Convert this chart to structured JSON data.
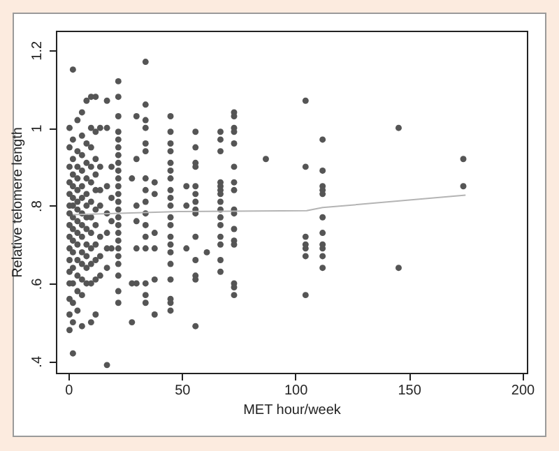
{
  "chart_data": {
    "type": "scatter",
    "xlabel": "MET hour/week",
    "ylabel": "Relative telomere length",
    "xlim": [
      -5.5,
      202
    ],
    "ylim": [
      0.37,
      1.25
    ],
    "xticks": [
      0,
      50,
      100,
      150,
      200
    ],
    "yticks": [
      {
        "value": 0.4,
        "label": ".4"
      },
      {
        "value": 0.6,
        "label": ".6"
      },
      {
        "value": 0.8,
        "label": ".8"
      },
      {
        "value": 1,
        "label": "1"
      },
      {
        "value": 1.2,
        "label": "1.2"
      }
    ],
    "grid": false,
    "series": [
      {
        "marker": "circle",
        "color": "#555555",
        "x": [
          0.5,
          0.5,
          0.5,
          0.5,
          0.5,
          0.5,
          0.5,
          0.5,
          0.5,
          0.5,
          0.5,
          0.5,
          0.5,
          0.5,
          0.5,
          0.5,
          2,
          2,
          2,
          2,
          2,
          2,
          2,
          2,
          2,
          2,
          2,
          2,
          2,
          2,
          2,
          2,
          4,
          4,
          4,
          4,
          4,
          4,
          4,
          4,
          4,
          4,
          4,
          4,
          4,
          4,
          6,
          6,
          6,
          6,
          6,
          6,
          6,
          6,
          6,
          6,
          6,
          6,
          6,
          6,
          8,
          8,
          8,
          8,
          8,
          8,
          8,
          8,
          8,
          8,
          8,
          8,
          10,
          10,
          10,
          10,
          10,
          10,
          10,
          10,
          10,
          10,
          10,
          10,
          12,
          12,
          12,
          12,
          12,
          12,
          12,
          12,
          12,
          12,
          12,
          14,
          14,
          14,
          14,
          14,
          14,
          14,
          17,
          17,
          17,
          17,
          17,
          17,
          17,
          17,
          19,
          19,
          19,
          19,
          22,
          22,
          22,
          22,
          22,
          22,
          22,
          22,
          22,
          22,
          22,
          22,
          22,
          22,
          22,
          22,
          22,
          22,
          22,
          22,
          22,
          22,
          22,
          22,
          28,
          28,
          28,
          30,
          30,
          30,
          30,
          30,
          30,
          34,
          34,
          34,
          34,
          34,
          34,
          34,
          34,
          34,
          34,
          34,
          34,
          34,
          34,
          34,
          34,
          38,
          38,
          38,
          38,
          38,
          38,
          45,
          45,
          45,
          45,
          45,
          45,
          45,
          45,
          45,
          45,
          45,
          45,
          45,
          45,
          45,
          45,
          45,
          45,
          45,
          45,
          52,
          52,
          52,
          56,
          56,
          56,
          56,
          56,
          56,
          56,
          56,
          56,
          56,
          56,
          56,
          56,
          56,
          61,
          67,
          67,
          67,
          67,
          67,
          67,
          67,
          67,
          67,
          67,
          67,
          67,
          67,
          67,
          67,
          73,
          73,
          73,
          73,
          73,
          73,
          73,
          73,
          73,
          73,
          73,
          73,
          73,
          73,
          73,
          73,
          87,
          104.5,
          104.5,
          104.5,
          104.5,
          104.5,
          104.5,
          104.5,
          112,
          112,
          112,
          112,
          112,
          112,
          112,
          112,
          112,
          112,
          112,
          145.5,
          145.5,
          174,
          174
        ],
        "values": [
          0.48,
          0.52,
          0.56,
          0.6,
          0.63,
          0.66,
          0.69,
          0.72,
          0.75,
          0.78,
          0.8,
          0.83,
          0.86,
          0.9,
          0.95,
          1.0,
          0.42,
          0.5,
          0.55,
          0.6,
          0.64,
          0.68,
          0.71,
          0.74,
          0.77,
          0.8,
          0.82,
          0.85,
          0.88,
          0.92,
          0.97,
          1.15,
          0.53,
          0.58,
          0.62,
          0.66,
          0.7,
          0.73,
          0.76,
          0.79,
          0.81,
          0.84,
          0.87,
          0.9,
          0.94,
          1.02,
          0.49,
          0.57,
          0.61,
          0.65,
          0.68,
          0.72,
          0.75,
          0.78,
          0.82,
          0.85,
          0.89,
          0.93,
          0.98,
          1.04,
          0.6,
          0.64,
          0.67,
          0.7,
          0.74,
          0.77,
          0.8,
          0.83,
          0.87,
          0.91,
          0.96,
          1.07,
          0.5,
          0.6,
          0.65,
          0.69,
          0.73,
          0.77,
          0.81,
          0.86,
          0.9,
          0.95,
          1.0,
          1.08,
          0.52,
          0.61,
          0.66,
          0.7,
          0.75,
          0.79,
          0.84,
          0.88,
          0.92,
          0.99,
          1.08,
          0.62,
          0.67,
          0.72,
          0.8,
          0.84,
          0.9,
          1.0,
          0.39,
          0.64,
          0.69,
          0.73,
          0.78,
          0.85,
          1.0,
          1.07,
          0.69,
          0.76,
          0.82,
          0.9,
          0.55,
          0.58,
          0.62,
          0.65,
          0.67,
          0.69,
          0.71,
          0.73,
          0.75,
          0.77,
          0.79,
          0.81,
          0.83,
          0.85,
          0.87,
          0.89,
          0.91,
          0.93,
          0.95,
          0.97,
          0.99,
          1.03,
          1.08,
          1.12,
          0.5,
          0.6,
          0.87,
          0.6,
          0.69,
          0.76,
          0.8,
          0.92,
          1.03,
          0.55,
          0.57,
          0.6,
          0.69,
          0.72,
          0.75,
          0.78,
          0.81,
          0.84,
          0.87,
          0.94,
          0.96,
          1.0,
          1.02,
          1.06,
          1.17,
          0.52,
          0.61,
          0.69,
          0.73,
          0.83,
          0.86,
          1.03,
          0.99,
          0.96,
          0.94,
          0.91,
          0.89,
          0.87,
          0.84,
          0.82,
          0.8,
          0.77,
          0.75,
          0.72,
          0.7,
          0.68,
          0.65,
          0.61,
          0.56,
          0.55,
          0.53,
          0.69,
          0.8,
          0.85,
          0.99,
          0.95,
          0.91,
          0.9,
          0.85,
          0.83,
          0.81,
          0.79,
          0.78,
          0.72,
          0.66,
          0.62,
          0.61,
          0.49,
          0.68,
          0.99,
          0.97,
          0.94,
          0.86,
          0.85,
          0.84,
          0.83,
          0.81,
          0.79,
          0.77,
          0.75,
          0.72,
          0.7,
          0.66,
          0.63,
          1.04,
          1.03,
          1.0,
          0.99,
          0.96,
          0.9,
          0.86,
          0.84,
          0.79,
          0.78,
          0.74,
          0.71,
          0.7,
          0.6,
          0.59,
          0.57,
          0.92,
          1.07,
          0.9,
          0.72,
          0.7,
          0.69,
          0.67,
          0.57,
          0.97,
          0.89,
          0.85,
          0.84,
          0.83,
          0.77,
          0.73,
          0.7,
          0.69,
          0.67,
          0.64,
          1.0,
          0.64,
          0.92,
          0.85
        ]
      },
      {
        "type": "line",
        "color": "#b4b4b4",
        "x": [
          2,
          50,
          105,
          112,
          175
        ],
        "values": [
          0.777,
          0.785,
          0.787,
          0.795,
          0.827
        ]
      }
    ]
  }
}
